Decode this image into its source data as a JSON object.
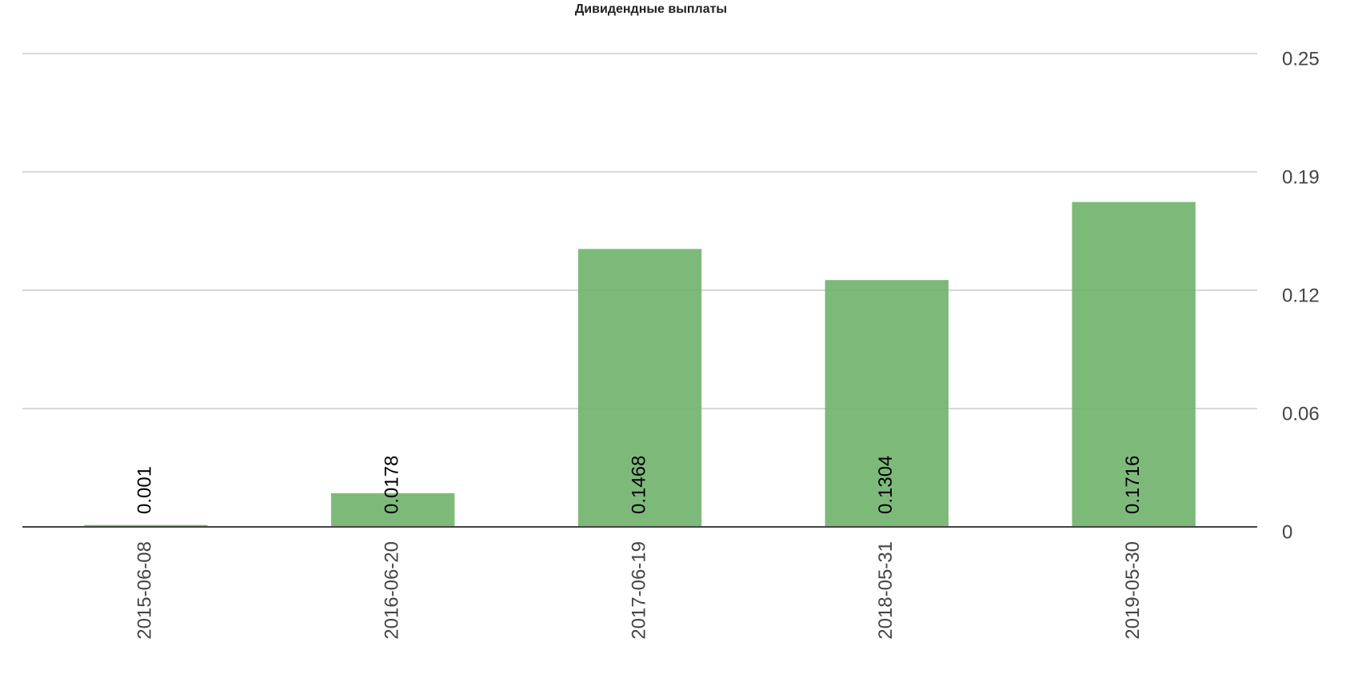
{
  "chart_data": {
    "type": "bar",
    "title": "Дивидендные выплаты",
    "categories": [
      "2015-06-08",
      "2016-06-20",
      "2017-06-19",
      "2018-05-31",
      "2019-05-30"
    ],
    "values": [
      0.001,
      0.0178,
      0.1468,
      0.1304,
      0.1716
    ],
    "color": "#6fb26c",
    "ylim": [
      0,
      0.25
    ],
    "yticks": [
      0,
      {
        "value": 0.0625,
        "label": "0.06"
      },
      {
        "value": 0.125,
        "label": "0.12"
      },
      {
        "value": 0.1875,
        "label": "0.19"
      },
      0.25
    ],
    "grid": true
  }
}
